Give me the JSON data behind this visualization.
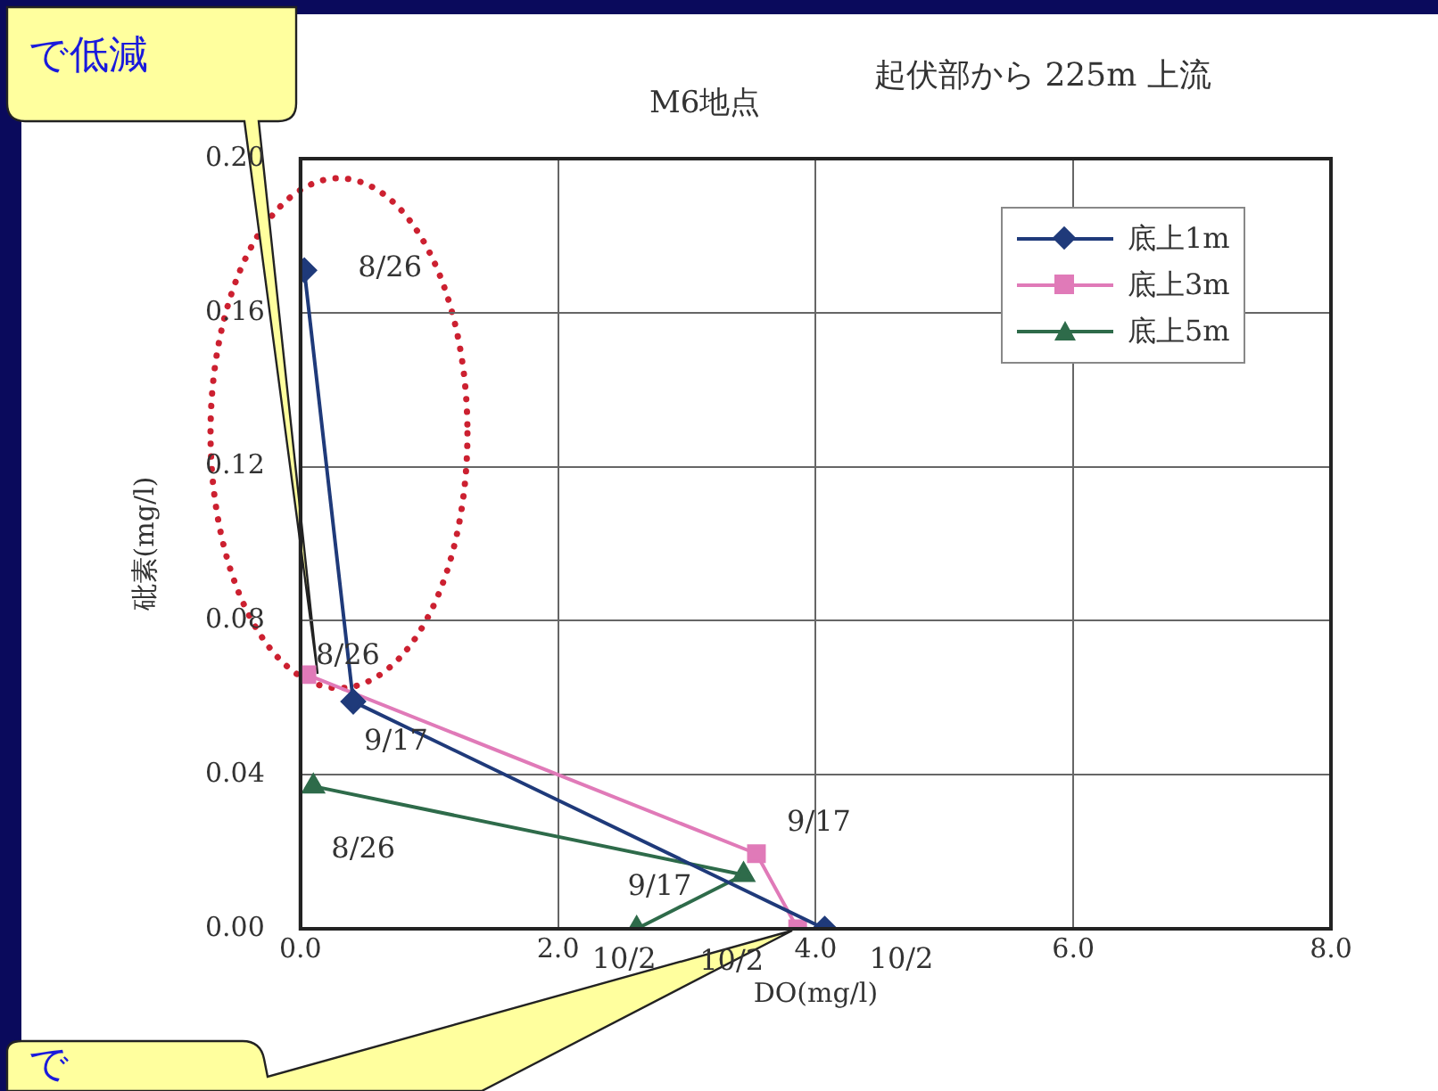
{
  "chart_data": {
    "type": "line",
    "title": "M6地点",
    "subtitle": "起伏部から 225m 上流",
    "xlabel": "DO(mg/l)",
    "ylabel": "砒素(mg/l)",
    "series": [
      {
        "name": "底上1m",
        "color": "#1f3a7a",
        "marker": "diamond",
        "x": [
          0.03,
          0.41,
          4.07
        ],
        "values": [
          0.171,
          0.059,
          0
        ],
        "value_labels": [
          "8/26",
          "9/17",
          "10/2"
        ]
      },
      {
        "name": "底上3m",
        "color": "#e07ab8",
        "marker": "square",
        "x": [
          0.05,
          3.54,
          3.86
        ],
        "values": [
          0.066,
          0.0195,
          0
        ],
        "value_labels": [
          "8/26",
          "9/17",
          "10/2"
        ]
      },
      {
        "name": "底上5m",
        "color": "#2e6b4a",
        "marker": "triangle",
        "x": [
          0.1,
          3.44,
          2.61
        ],
        "values": [
          0.037,
          0.014,
          0
        ],
        "value_labels": [
          "8/26",
          "9/17",
          "10/2"
        ]
      }
    ],
    "xlim": [
      0,
      8
    ],
    "xticks": [
      {
        "value": 0,
        "label": "0.0"
      },
      {
        "value": 2,
        "label": "2.0"
      },
      {
        "value": 4,
        "label": "4.0"
      },
      {
        "value": 6,
        "label": "6.0"
      },
      {
        "value": 8,
        "label": "8.0"
      }
    ],
    "ylim": [
      0,
      0.2
    ],
    "yticks": [
      {
        "value": 0,
        "label": "0.00"
      },
      {
        "value": 0.04,
        "label": "0.04"
      },
      {
        "value": 0.08,
        "label": "0.08"
      },
      {
        "value": 0.12,
        "label": "0.12"
      },
      {
        "value": 0.16,
        "label": "0.16"
      },
      {
        "value": 0.2,
        "label": "0.20"
      }
    ],
    "grid": true,
    "legend": "top right",
    "line_style": "solid",
    "annotations": [
      "で低減",
      "で"
    ]
  }
}
